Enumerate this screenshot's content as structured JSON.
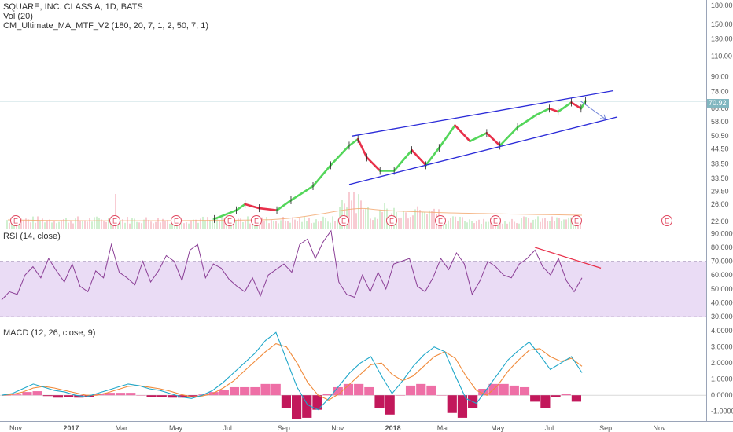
{
  "header": {
    "symbol_line": "SQUARE, INC. CLASS A, 1D, BATS",
    "vol_label": "Vol (20)",
    "ma_label": "CM_Ultimate_MA_MTF_V2 (180, 20, 7, 1, 2, 50, 7, 1)"
  },
  "colors": {
    "up": "#53d65a",
    "down": "#e8304a",
    "channel": "#2b2bd8",
    "rsi_line": "#8b3f96",
    "rsi_band": "#eadcf5",
    "macd_line": "#1fa7c9",
    "signal_line": "#f08a3a",
    "hist_pos": "#ee6fa6",
    "hist_neg": "#c2185b",
    "price_tag": "#82b7c0",
    "earnings": "#e0475f"
  },
  "panes": {
    "price": {
      "price_tag": "70.92"
    },
    "rsi": {
      "label": "RSI (14, close)"
    },
    "macd": {
      "label": "MACD (12, 26, close, 9)"
    }
  },
  "earnings_marker_label": "E",
  "chart_data": [
    {
      "type": "line",
      "title": "SQUARE, INC. CLASS A, 1D, BATS",
      "y_scale": "log",
      "y_ticks": [
        "180.00",
        "150.00",
        "130.00",
        "110.00",
        "90.00",
        "78.00",
        "66.00",
        "58.00",
        "50.50",
        "44.50",
        "38.50",
        "33.50",
        "29.50",
        "26.00",
        "22.00"
      ],
      "x_ticks": [
        "Nov",
        "2017",
        "Mar",
        "May",
        "Jul",
        "Sep",
        "Nov",
        "2018",
        "Mar",
        "May",
        "Jul",
        "Sep",
        "Nov"
      ],
      "close_series": [
        {
          "date": "2017-06-15",
          "close": 22.5
        },
        {
          "date": "2017-07-10",
          "close": 24.5
        },
        {
          "date": "2017-07-20",
          "close": 26.0
        },
        {
          "date": "2017-08-05",
          "close": 25.0
        },
        {
          "date": "2017-08-25",
          "close": 24.5
        },
        {
          "date": "2017-09-10",
          "close": 27.0
        },
        {
          "date": "2017-10-05",
          "close": 31.0
        },
        {
          "date": "2017-10-25",
          "close": 38.0
        },
        {
          "date": "2017-11-15",
          "close": 46.0
        },
        {
          "date": "2017-11-25",
          "close": 49.0
        },
        {
          "date": "2017-12-05",
          "close": 41.0
        },
        {
          "date": "2017-12-20",
          "close": 36.0
        },
        {
          "date": "2018-01-05",
          "close": 36.0
        },
        {
          "date": "2018-01-25",
          "close": 44.0
        },
        {
          "date": "2018-02-10",
          "close": 38.0
        },
        {
          "date": "2018-02-25",
          "close": 45.0
        },
        {
          "date": "2018-03-15",
          "close": 56.0
        },
        {
          "date": "2018-04-01",
          "close": 48.0
        },
        {
          "date": "2018-04-20",
          "close": 52.0
        },
        {
          "date": "2018-05-05",
          "close": 46.0
        },
        {
          "date": "2018-05-25",
          "close": 55.0
        },
        {
          "date": "2018-06-15",
          "close": 62.0
        },
        {
          "date": "2018-06-30",
          "close": 66.0
        },
        {
          "date": "2018-07-10",
          "close": 64.0
        },
        {
          "date": "2018-07-25",
          "close": 70.0
        },
        {
          "date": "2018-08-05",
          "close": 66.0
        },
        {
          "date": "2018-08-10",
          "close": 70.92
        }
      ],
      "last_price": 70.92,
      "annotations": [
        "rising wedge channel (two blue trendlines)",
        "projected downward arrow",
        "horizontal line at last price"
      ]
    },
    {
      "type": "line",
      "title": "RSI (14, close)",
      "y_ticks": [
        "90.0000",
        "80.0000",
        "70.0000",
        "60.0000",
        "50.0000",
        "40.0000",
        "30.0000"
      ],
      "band": [
        30,
        70
      ],
      "ylim": [
        25,
        93
      ],
      "series": [
        {
          "values": [
            42,
            48,
            46,
            60,
            66,
            58,
            72,
            63,
            55,
            68,
            52,
            48,
            63,
            58,
            82,
            62,
            58,
            53,
            70,
            55,
            63,
            74,
            70,
            56,
            78,
            82,
            58,
            68,
            65,
            57,
            52,
            48,
            58,
            45,
            60,
            64,
            68,
            62,
            82,
            86,
            72,
            84,
            92,
            55,
            46,
            44,
            60,
            48,
            62,
            50,
            68,
            70,
            72,
            52,
            48,
            58,
            72,
            64,
            76,
            68,
            46,
            56,
            70,
            66,
            60,
            58,
            68,
            72,
            78,
            66,
            60,
            72,
            56,
            48,
            58
          ]
        }
      ],
      "annotations": [
        "bearish divergence line (red) near top-right"
      ]
    },
    {
      "type": "line",
      "title": "MACD (12, 26, close, 9)",
      "y_ticks": [
        "4.0000",
        "3.0000",
        "2.0000",
        "1.0000",
        "0.0000",
        "-1.0000"
      ],
      "ylim": [
        -1.6,
        4.4
      ],
      "series": [
        {
          "values": [
            0.0,
            0.1,
            0.4,
            0.7,
            0.5,
            0.3,
            0.2,
            0.0,
            -0.1,
            0.1,
            0.3,
            0.5,
            0.7,
            0.6,
            0.4,
            0.3,
            0.1,
            -0.1,
            -0.2,
            0.0,
            0.3,
            0.8,
            1.4,
            2.0,
            2.6,
            3.4,
            3.9,
            2.2,
            0.5,
            -0.6,
            -0.9,
            -0.2,
            0.6,
            1.4,
            2.0,
            2.4,
            1.2,
            0.1,
            0.9,
            1.8,
            2.5,
            3.0,
            2.7,
            1.2,
            -0.2,
            -0.5,
            0.4,
            1.3,
            2.2,
            2.8,
            3.3,
            2.5,
            1.6,
            2.0,
            2.4,
            1.4
          ]
        },
        {
          "values": [
            0.0,
            0.05,
            0.2,
            0.45,
            0.55,
            0.45,
            0.3,
            0.15,
            0.0,
            0.0,
            0.15,
            0.35,
            0.55,
            0.6,
            0.5,
            0.4,
            0.25,
            0.05,
            -0.1,
            -0.05,
            0.1,
            0.45,
            0.9,
            1.5,
            2.1,
            2.7,
            3.2,
            3.0,
            2.0,
            0.8,
            0.0,
            -0.3,
            0.1,
            0.7,
            1.3,
            1.9,
            2.0,
            1.3,
            0.9,
            1.2,
            1.8,
            2.4,
            2.7,
            2.3,
            1.2,
            0.3,
            0.0,
            0.6,
            1.5,
            2.2,
            2.8,
            2.9,
            2.4,
            2.1,
            2.3,
            1.8
          ]
        }
      ],
      "histogram": [
        0.0,
        0.05,
        0.2,
        0.25,
        -0.05,
        -0.15,
        -0.1,
        -0.15,
        -0.1,
        0.1,
        0.15,
        0.15,
        0.15,
        0.0,
        -0.1,
        -0.1,
        -0.15,
        -0.15,
        -0.1,
        0.05,
        0.2,
        0.35,
        0.5,
        0.5,
        0.5,
        0.7,
        0.7,
        -0.8,
        -1.5,
        -1.4,
        -0.9,
        0.1,
        0.5,
        0.7,
        0.7,
        0.5,
        -0.8,
        -1.2,
        0.0,
        0.6,
        0.7,
        0.6,
        0.0,
        -1.1,
        -1.4,
        -0.8,
        0.4,
        0.7,
        0.7,
        0.6,
        0.5,
        -0.4,
        -0.8,
        -0.1,
        0.1,
        -0.4
      ]
    }
  ]
}
